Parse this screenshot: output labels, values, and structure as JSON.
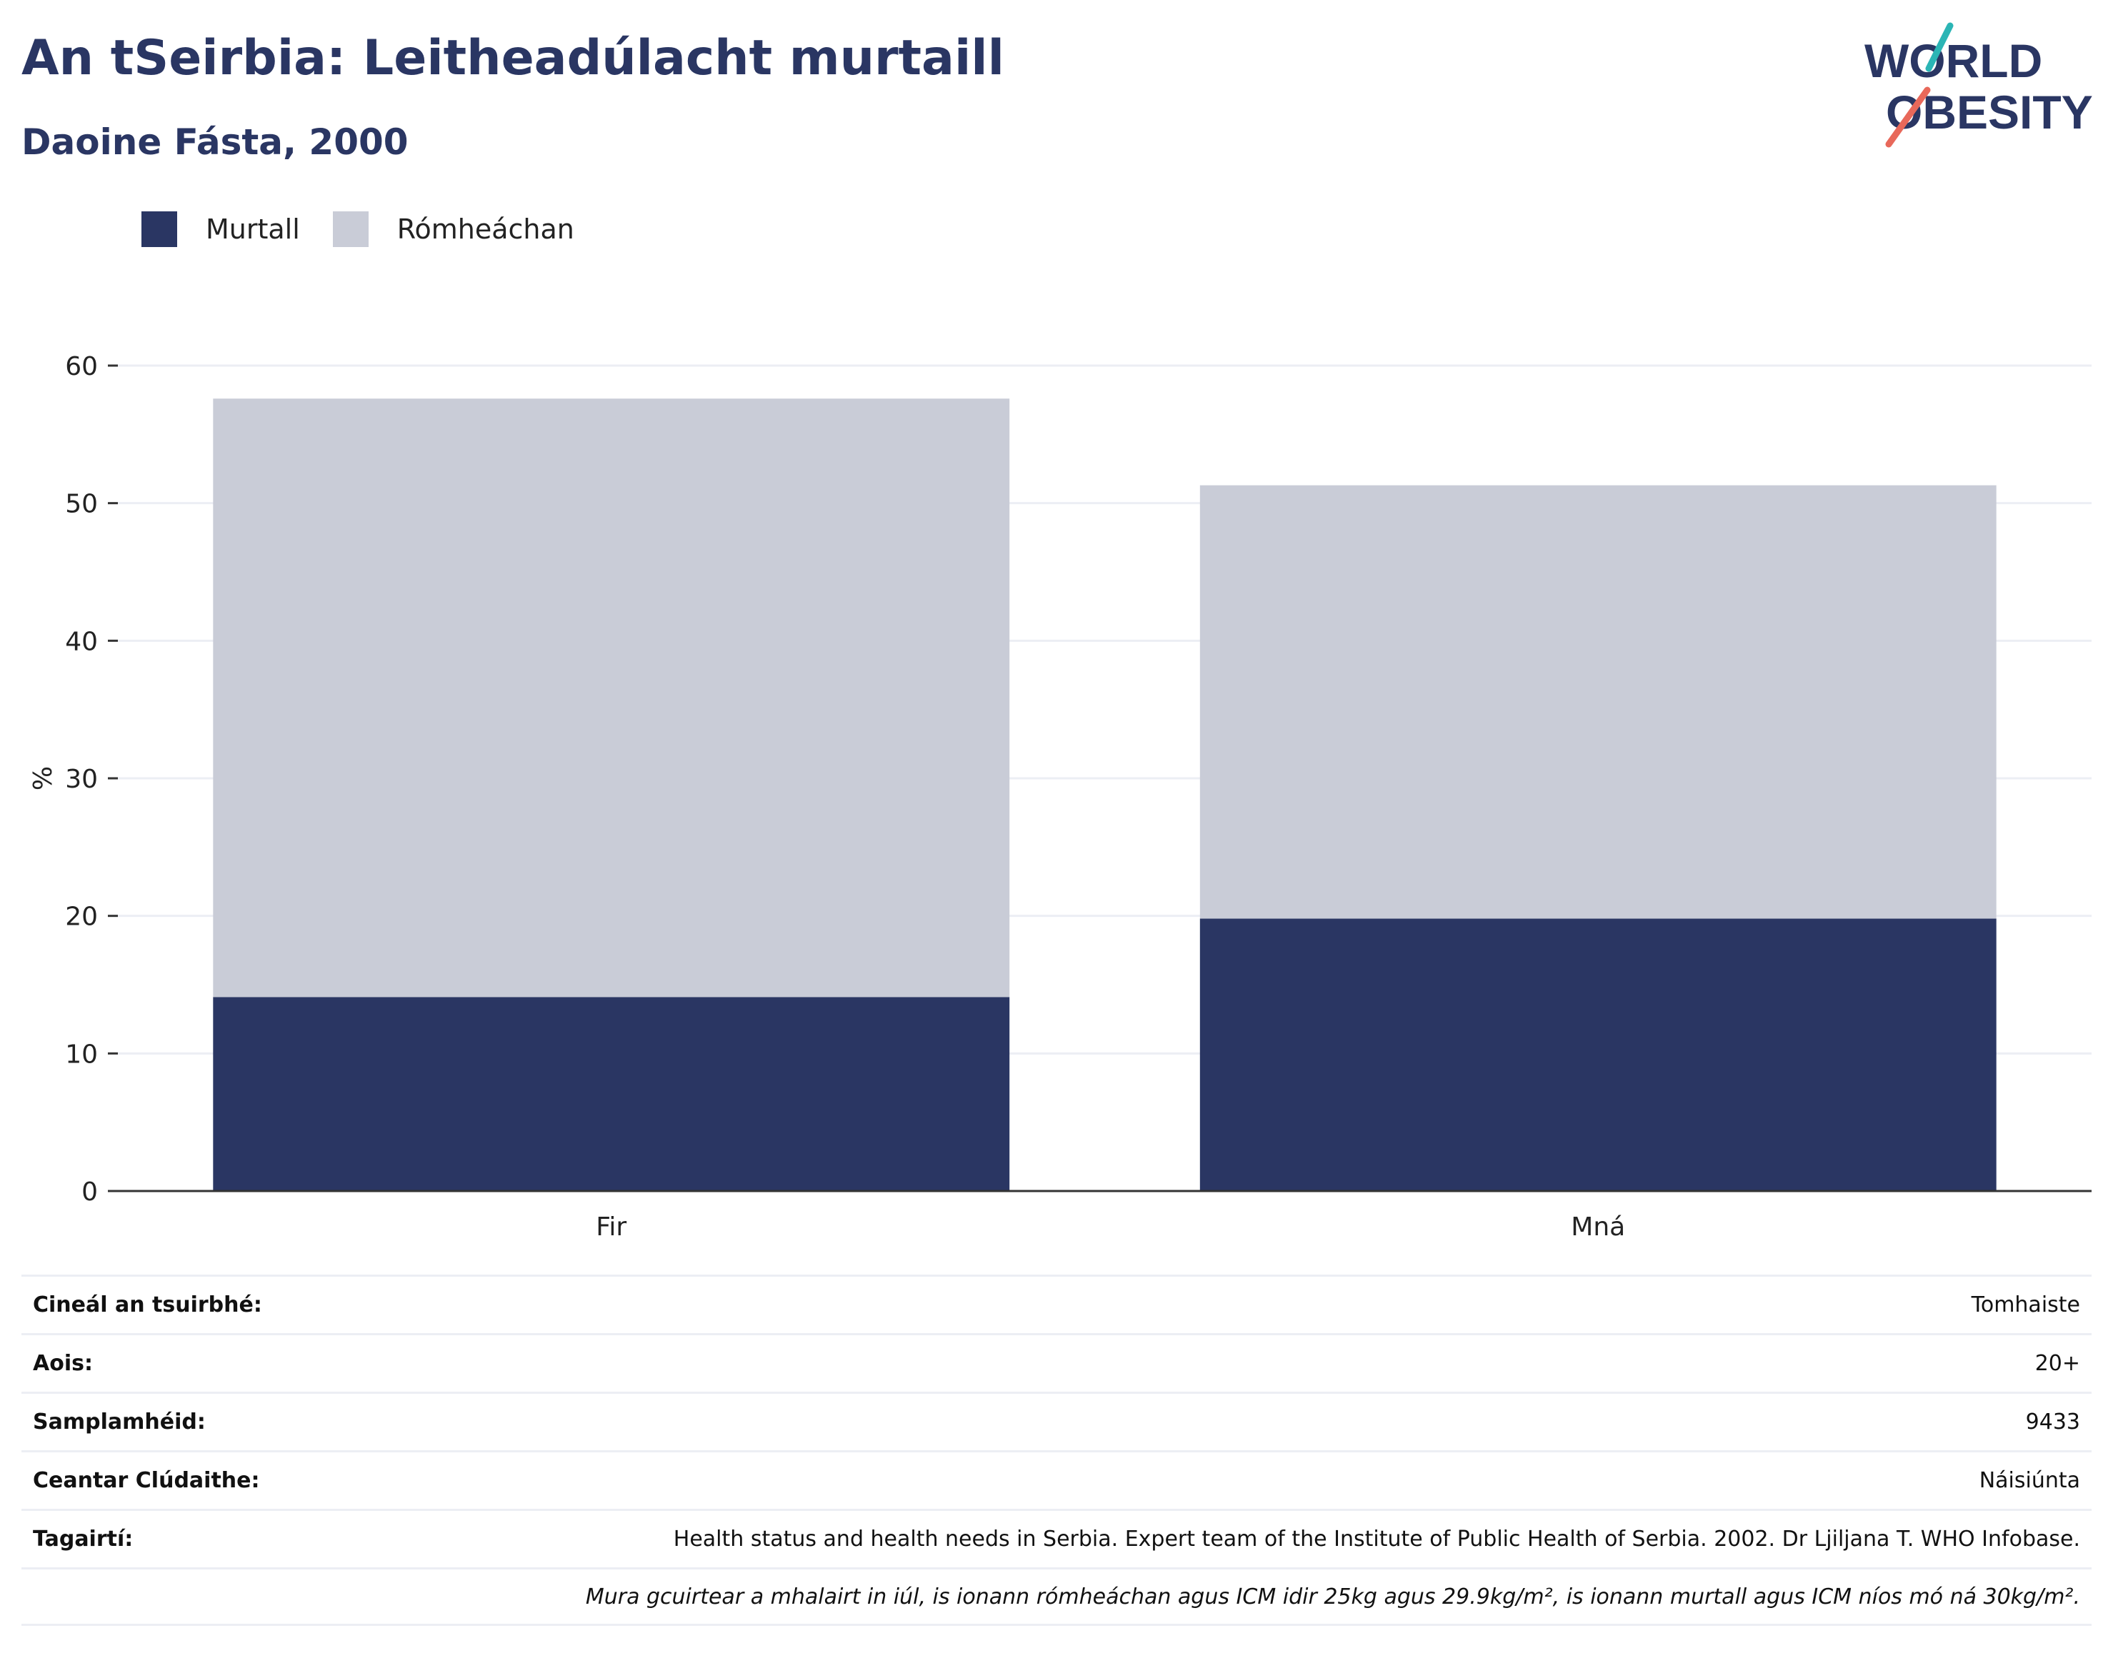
{
  "header": {
    "title": "An tSeirbia: Leitheadúlacht murtaill",
    "subtitle": "Daoine Fásta, 2000"
  },
  "logo": {
    "line1": "WORLD",
    "line2": "OBESITY",
    "accent_teal": "#2bb5b5",
    "accent_red": "#e8685a"
  },
  "colors": {
    "obese": "#2a3663",
    "overweight": "#c9ccd7",
    "grid": "#eceef4",
    "axis": "#333333"
  },
  "chart_data": {
    "type": "bar",
    "stacked": true,
    "categories": [
      "Fir",
      "Mná"
    ],
    "series": [
      {
        "name": "Murtall",
        "values": [
          14.1,
          19.8
        ]
      },
      {
        "name": "Rómheáchan",
        "values": [
          43.5,
          31.5
        ]
      }
    ],
    "ylabel": "%",
    "ylim": [
      0,
      60
    ],
    "yticks": [
      0,
      10,
      20,
      30,
      40,
      50,
      60
    ],
    "grid": true,
    "legend_position": "top-left"
  },
  "info": [
    {
      "label": "Cineál an tsuirbhé:",
      "value": "Tomhaiste"
    },
    {
      "label": "Aois:",
      "value": "20+"
    },
    {
      "label": "Samplamhéid:",
      "value": "9433"
    },
    {
      "label": "Ceantar Clúdaithe:",
      "value": "Náisiúnta"
    },
    {
      "label": "Tagairtí:",
      "value": "Health status and health needs in Serbia. Expert team of the Institute of Public Health of Serbia. 2002. Dr Ljiljana T. WHO Infobase."
    }
  ],
  "note": "Mura gcuirtear a mhalairt in iúl, is ionann rómheáchan agus ICM idir 25kg agus 29.9kg/m², is ionann murtall agus ICM níos mó ná 30kg/m²."
}
